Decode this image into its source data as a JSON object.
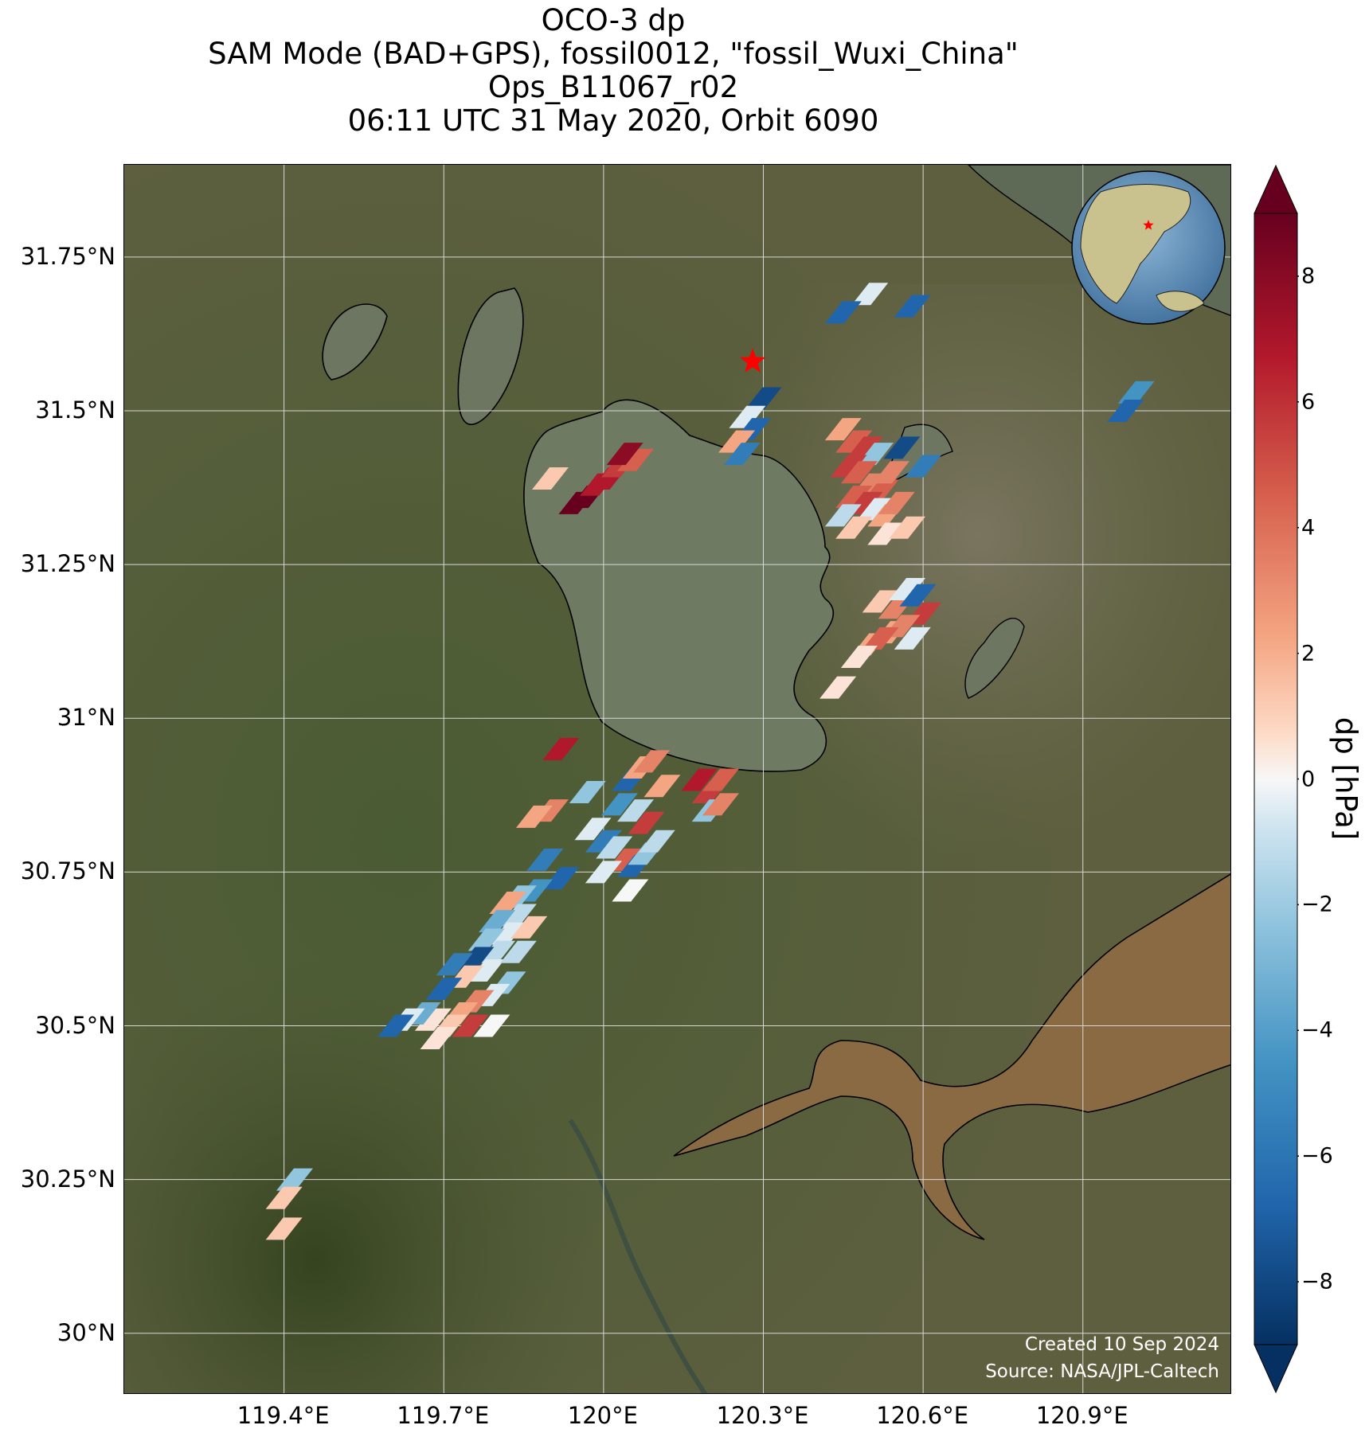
{
  "title": {
    "line1": "OCO-3 dp",
    "line2": "SAM Mode (BAD+GPS), fossil0012, \"fossil_Wuxi_China\"",
    "line3": "Ops_B11067_r02",
    "line4": "06:11 UTC 31 May 2020, Orbit 6090"
  },
  "map": {
    "lon_range": [
      119.1,
      121.18
    ],
    "lat_range": [
      29.9,
      31.9
    ],
    "lat_ticks": [
      "31.75°N",
      "31.5°N",
      "31.25°N",
      "31°N",
      "30.75°N",
      "30.5°N",
      "30.25°N",
      "30°N"
    ],
    "lat_values": [
      31.75,
      31.5,
      31.25,
      31.0,
      30.75,
      30.5,
      30.25,
      30.0
    ],
    "lon_ticks": [
      "119.4°E",
      "119.7°E",
      "120°E",
      "120.3°E",
      "120.6°E",
      "120.9°E"
    ],
    "lon_values": [
      119.4,
      119.7,
      120.0,
      120.3,
      120.6,
      120.9
    ],
    "target": {
      "lon": 120.28,
      "lat": 31.58,
      "marker": "red-star"
    },
    "credit": {
      "created": "Created 10 Sep 2024",
      "source": "Source: NASA/JPL-Caltech"
    },
    "globe_inset": {
      "center_region": "East Asia",
      "marker": "red-star"
    }
  },
  "colorbar": {
    "label": "dp [hPa]",
    "range": [
      -9,
      9
    ],
    "ticks": [
      "8",
      "6",
      "4",
      "2",
      "0",
      "−2",
      "−4",
      "−6",
      "−8"
    ],
    "tick_values": [
      8,
      6,
      4,
      2,
      0,
      -2,
      -4,
      -6,
      -8
    ],
    "colormap": "RdBu_r",
    "extend": "both"
  },
  "soundings": [
    {
      "lon": 119.95,
      "lat": 31.35,
      "dp": 9
    },
    {
      "lon": 119.97,
      "lat": 31.36,
      "dp": 9
    },
    {
      "lon": 119.99,
      "lat": 31.38,
      "dp": 7
    },
    {
      "lon": 120.01,
      "lat": 31.39,
      "dp": 7
    },
    {
      "lon": 120.03,
      "lat": 31.41,
      "dp": 6
    },
    {
      "lon": 120.06,
      "lat": 31.42,
      "dp": 5
    },
    {
      "lon": 120.04,
      "lat": 31.43,
      "dp": 8
    },
    {
      "lon": 119.9,
      "lat": 31.39,
      "dp": 2
    },
    {
      "lon": 120.45,
      "lat": 31.47,
      "dp": 3
    },
    {
      "lon": 120.47,
      "lat": 31.45,
      "dp": 5
    },
    {
      "lon": 120.49,
      "lat": 31.44,
      "dp": 6
    },
    {
      "lon": 120.51,
      "lat": 31.43,
      "dp": -3
    },
    {
      "lon": 120.46,
      "lat": 31.41,
      "dp": 6
    },
    {
      "lon": 120.48,
      "lat": 31.4,
      "dp": 5
    },
    {
      "lon": 120.5,
      "lat": 31.38,
      "dp": 4
    },
    {
      "lon": 120.52,
      "lat": 31.37,
      "dp": 5
    },
    {
      "lon": 120.54,
      "lat": 31.4,
      "dp": 4
    },
    {
      "lon": 120.47,
      "lat": 31.36,
      "dp": 5
    },
    {
      "lon": 120.49,
      "lat": 31.35,
      "dp": 6
    },
    {
      "lon": 120.51,
      "lat": 31.34,
      "dp": -1
    },
    {
      "lon": 120.53,
      "lat": 31.33,
      "dp": 3
    },
    {
      "lon": 120.55,
      "lat": 31.35,
      "dp": 4
    },
    {
      "lon": 120.45,
      "lat": 31.33,
      "dp": -2
    },
    {
      "lon": 120.47,
      "lat": 31.31,
      "dp": 2
    },
    {
      "lon": 120.56,
      "lat": 31.44,
      "dp": -8
    },
    {
      "lon": 120.6,
      "lat": 31.41,
      "dp": -6
    },
    {
      "lon": 120.53,
      "lat": 31.3,
      "dp": 1
    },
    {
      "lon": 120.57,
      "lat": 31.31,
      "dp": 2
    },
    {
      "lon": 120.3,
      "lat": 31.52,
      "dp": -8
    },
    {
      "lon": 120.27,
      "lat": 31.49,
      "dp": -1
    },
    {
      "lon": 120.28,
      "lat": 31.47,
      "dp": -7
    },
    {
      "lon": 120.25,
      "lat": 31.45,
      "dp": 3
    },
    {
      "lon": 120.26,
      "lat": 31.43,
      "dp": -6
    },
    {
      "lon": 120.52,
      "lat": 31.19,
      "dp": 2
    },
    {
      "lon": 120.55,
      "lat": 31.18,
      "dp": 4
    },
    {
      "lon": 120.57,
      "lat": 31.21,
      "dp": -1
    },
    {
      "lon": 120.59,
      "lat": 31.2,
      "dp": -7
    },
    {
      "lon": 120.6,
      "lat": 31.17,
      "dp": 6
    },
    {
      "lon": 120.54,
      "lat": 31.14,
      "dp": 3
    },
    {
      "lon": 120.56,
      "lat": 31.15,
      "dp": 4
    },
    {
      "lon": 120.58,
      "lat": 31.13,
      "dp": -1
    },
    {
      "lon": 120.5,
      "lat": 31.12,
      "dp": 3
    },
    {
      "lon": 120.52,
      "lat": 31.13,
      "dp": 5
    },
    {
      "lon": 120.48,
      "lat": 31.1,
      "dp": 1
    },
    {
      "lon": 120.44,
      "lat": 31.05,
      "dp": 1
    },
    {
      "lon": 119.92,
      "lat": 30.95,
      "dp": 7
    },
    {
      "lon": 119.97,
      "lat": 30.88,
      "dp": -3
    },
    {
      "lon": 119.9,
      "lat": 30.85,
      "dp": 4
    },
    {
      "lon": 119.87,
      "lat": 30.84,
      "dp": 3
    },
    {
      "lon": 120.05,
      "lat": 30.9,
      "dp": -7
    },
    {
      "lon": 120.07,
      "lat": 30.92,
      "dp": 3
    },
    {
      "lon": 120.09,
      "lat": 30.93,
      "dp": 4
    },
    {
      "lon": 120.11,
      "lat": 30.89,
      "dp": 3
    },
    {
      "lon": 120.03,
      "lat": 30.86,
      "dp": -5
    },
    {
      "lon": 120.06,
      "lat": 30.85,
      "dp": -2
    },
    {
      "lon": 120.08,
      "lat": 30.83,
      "dp": 6
    },
    {
      "lon": 119.98,
      "lat": 30.82,
      "dp": -1
    },
    {
      "lon": 120.0,
      "lat": 30.8,
      "dp": -6
    },
    {
      "lon": 120.02,
      "lat": 30.79,
      "dp": -2
    },
    {
      "lon": 120.04,
      "lat": 30.77,
      "dp": 5
    },
    {
      "lon": 120.06,
      "lat": 30.76,
      "dp": -7
    },
    {
      "lon": 120.08,
      "lat": 30.78,
      "dp": -3
    },
    {
      "lon": 120.1,
      "lat": 30.8,
      "dp": -2
    },
    {
      "lon": 120.0,
      "lat": 30.75,
      "dp": -1
    },
    {
      "lon": 120.05,
      "lat": 30.72,
      "dp": 0
    },
    {
      "lon": 120.18,
      "lat": 30.9,
      "dp": 7
    },
    {
      "lon": 120.2,
      "lat": 30.88,
      "dp": 6
    },
    {
      "lon": 120.22,
      "lat": 30.9,
      "dp": 5
    },
    {
      "lon": 120.2,
      "lat": 30.85,
      "dp": -3
    },
    {
      "lon": 120.22,
      "lat": 30.86,
      "dp": 4
    },
    {
      "lon": 119.92,
      "lat": 30.74,
      "dp": -7
    },
    {
      "lon": 119.89,
      "lat": 30.77,
      "dp": -6
    },
    {
      "lon": 119.87,
      "lat": 30.72,
      "dp": -5
    },
    {
      "lon": 119.84,
      "lat": 30.71,
      "dp": -3
    },
    {
      "lon": 119.82,
      "lat": 30.7,
      "dp": 3
    },
    {
      "lon": 119.84,
      "lat": 30.68,
      "dp": -2
    },
    {
      "lon": 119.8,
      "lat": 30.67,
      "dp": -4
    },
    {
      "lon": 119.82,
      "lat": 30.65,
      "dp": -1
    },
    {
      "lon": 119.78,
      "lat": 30.64,
      "dp": -3
    },
    {
      "lon": 119.8,
      "lat": 30.62,
      "dp": -2
    },
    {
      "lon": 119.76,
      "lat": 30.61,
      "dp": -8
    },
    {
      "lon": 119.78,
      "lat": 30.59,
      "dp": -1
    },
    {
      "lon": 119.74,
      "lat": 30.58,
      "dp": 2
    },
    {
      "lon": 119.72,
      "lat": 30.6,
      "dp": -6
    },
    {
      "lon": 119.86,
      "lat": 30.66,
      "dp": 2
    },
    {
      "lon": 119.84,
      "lat": 30.62,
      "dp": -2
    },
    {
      "lon": 119.82,
      "lat": 30.57,
      "dp": -3
    },
    {
      "lon": 119.79,
      "lat": 30.55,
      "dp": -1
    },
    {
      "lon": 119.76,
      "lat": 30.54,
      "dp": 4
    },
    {
      "lon": 119.7,
      "lat": 30.56,
      "dp": -7
    },
    {
      "lon": 119.73,
      "lat": 30.52,
      "dp": 3
    },
    {
      "lon": 119.71,
      "lat": 30.5,
      "dp": 2
    },
    {
      "lon": 119.68,
      "lat": 30.51,
      "dp": 1
    },
    {
      "lon": 119.66,
      "lat": 30.52,
      "dp": -4
    },
    {
      "lon": 119.63,
      "lat": 30.51,
      "dp": -1
    },
    {
      "lon": 119.61,
      "lat": 30.5,
      "dp": -7
    },
    {
      "lon": 119.75,
      "lat": 30.5,
      "dp": 6
    },
    {
      "lon": 119.79,
      "lat": 30.5,
      "dp": 0
    },
    {
      "lon": 119.69,
      "lat": 30.48,
      "dp": 1
    },
    {
      "lon": 119.42,
      "lat": 30.25,
      "dp": -3
    },
    {
      "lon": 119.4,
      "lat": 30.22,
      "dp": 2
    },
    {
      "lon": 119.4,
      "lat": 30.17,
      "dp": 2
    },
    {
      "lon": 120.5,
      "lat": 31.69,
      "dp": -1
    },
    {
      "lon": 120.45,
      "lat": 31.66,
      "dp": -7
    },
    {
      "lon": 120.58,
      "lat": 31.67,
      "dp": -7
    },
    {
      "lon": 121.0,
      "lat": 31.53,
      "dp": -5
    },
    {
      "lon": 120.98,
      "lat": 31.5,
      "dp": -7
    }
  ]
}
